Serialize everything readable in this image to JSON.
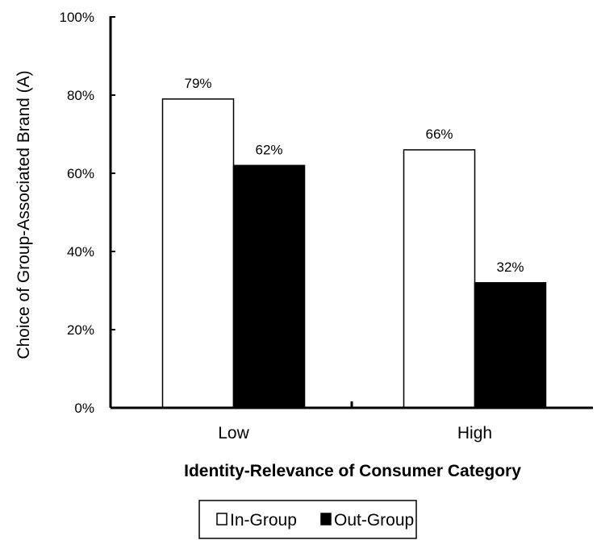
{
  "chart_data": {
    "type": "bar",
    "categories": [
      "Low",
      "High"
    ],
    "series": [
      {
        "name": "In-Group",
        "values": [
          79,
          66
        ],
        "labels": [
          "79%",
          "66%"
        ],
        "fill": "#ffffff",
        "stroke": "#000000"
      },
      {
        "name": "Out-Group",
        "values": [
          62,
          32
        ],
        "labels": [
          "62%",
          "32%"
        ],
        "fill": "#000000",
        "stroke": "#000000"
      }
    ],
    "title": "",
    "xlabel": "Identity-Relevance of Consumer Category",
    "ylabel": "Choice of Group-Associated Brand (A)",
    "ylim": [
      0,
      100
    ],
    "yticks": [
      0,
      20,
      40,
      60,
      80,
      100
    ],
    "ytick_labels": [
      "0%",
      "20%",
      "40%",
      "60%",
      "80%",
      "100%"
    ],
    "grid": false,
    "legend": "bottom"
  }
}
